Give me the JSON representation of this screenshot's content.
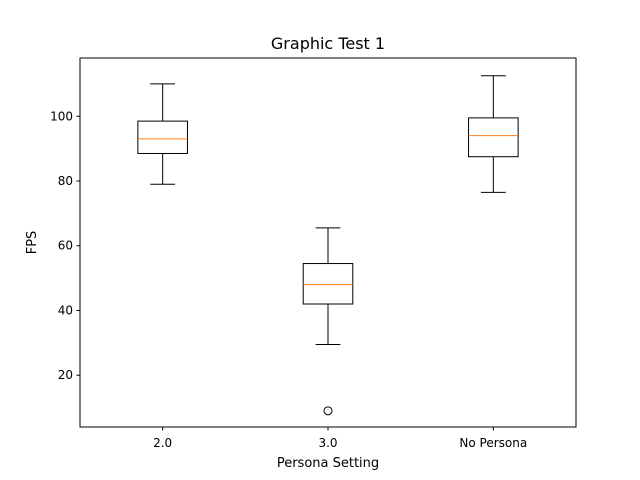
{
  "chart_data": {
    "type": "box",
    "title": "Graphic Test 1",
    "xlabel": "Persona Setting",
    "ylabel": "FPS",
    "ylim": [
      4,
      118
    ],
    "yticks": [
      20,
      40,
      60,
      80,
      100
    ],
    "grid": false,
    "categories": [
      "2.0",
      "3.0",
      "No Persona"
    ],
    "boxes": [
      {
        "category": "2.0",
        "whisker_low": 79,
        "q1": 88.5,
        "median": 93,
        "q3": 98.5,
        "whisker_high": 110,
        "outliers": []
      },
      {
        "category": "3.0",
        "whisker_low": 29.5,
        "q1": 42,
        "median": 48,
        "q3": 54.5,
        "whisker_high": 65.5,
        "outliers": [
          9
        ]
      },
      {
        "category": "No Persona",
        "whisker_low": 76.5,
        "q1": 87.5,
        "median": 94,
        "q3": 99.5,
        "whisker_high": 112.5,
        "outliers": []
      }
    ],
    "colors": {
      "box": "#000000",
      "median": "#ff7f0e",
      "outlier": "#000000"
    }
  }
}
